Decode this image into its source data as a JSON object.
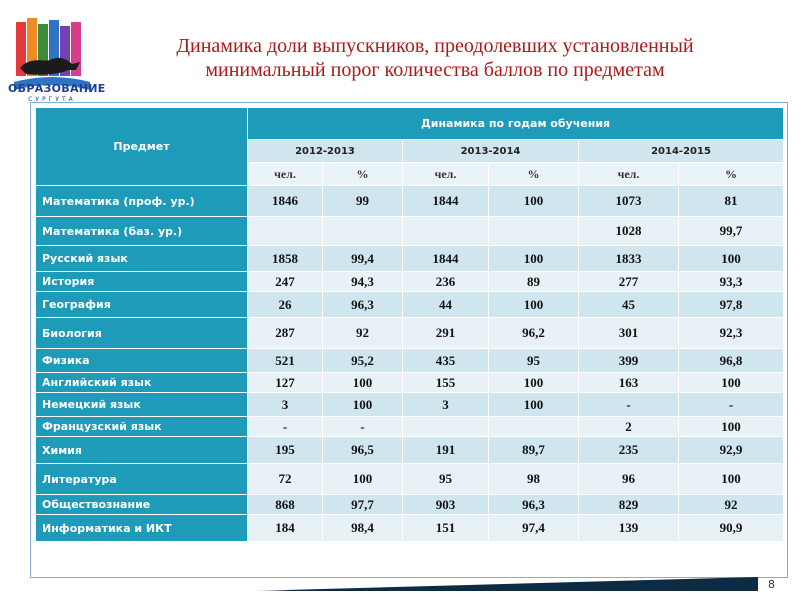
{
  "logo": {
    "name": "ОБРАЗОВАНИЕ",
    "sub": "СУРГУТА"
  },
  "title": {
    "line1": "Динамика  доли выпускников, преодолевших установленный",
    "line2": "минимальный порог количества баллов по предметам"
  },
  "table": {
    "subject_header": "Предмет",
    "dynamics_header": "Динамика по годам обучения",
    "years": [
      "2012-2013",
      "2013-2014",
      "2014-2015"
    ],
    "sub_headers": [
      "чел.",
      "%",
      "чел.",
      "%",
      "чел.",
      "%"
    ],
    "rows": [
      {
        "subject": "Математика (проф. ур.)",
        "values": [
          "1846",
          "99",
          "1844",
          "100",
          "1073",
          "81"
        ]
      },
      {
        "subject": "Математика (баз. ур.)",
        "values": [
          "",
          "",
          "",
          "",
          "1028",
          "99,7"
        ]
      },
      {
        "subject": "Русский язык",
        "values": [
          "1858",
          "99,4",
          "1844",
          "100",
          "1833",
          "100"
        ]
      },
      {
        "subject": "История",
        "values": [
          "247",
          "94,3",
          "236",
          "89",
          "277",
          "93,3"
        ]
      },
      {
        "subject": "География",
        "values": [
          "26",
          "96,3",
          "44",
          "100",
          "45",
          "97,8"
        ]
      },
      {
        "subject": "Биология",
        "values": [
          "287",
          "92",
          "291",
          "96,2",
          "301",
          "92,3"
        ]
      },
      {
        "subject": "Физика",
        "values": [
          "521",
          "95,2",
          "435",
          "95",
          "399",
          "96,8"
        ]
      },
      {
        "subject": "Английский язык",
        "values": [
          "127",
          "100",
          "155",
          "100",
          "163",
          "100"
        ]
      },
      {
        "subject": "Немецкий язык",
        "values": [
          "3",
          "100",
          "3",
          "100",
          "-",
          "-"
        ]
      },
      {
        "subject": "Французский язык",
        "values": [
          "-",
          "-",
          "",
          "",
          "2",
          "100"
        ]
      },
      {
        "subject": "Химия",
        "values": [
          "195",
          "96,5",
          "191",
          "89,7",
          "235",
          "92,9"
        ]
      },
      {
        "subject": "Литература",
        "values": [
          "72",
          "100",
          "95",
          "98",
          "96",
          "100"
        ]
      },
      {
        "subject": "Обществознание",
        "values": [
          "868",
          "97,7",
          "903",
          "96,3",
          "829",
          "92"
        ]
      },
      {
        "subject": "Информатика и ИКТ",
        "values": [
          "184",
          "98,4",
          "151",
          "97,4",
          "139",
          "90,9"
        ]
      }
    ]
  },
  "page_number": "8",
  "colors": {
    "header": "#1d9bb9",
    "title": "#b01818",
    "row_a": "#cfe6ee",
    "row_b": "#e8f2f6"
  }
}
